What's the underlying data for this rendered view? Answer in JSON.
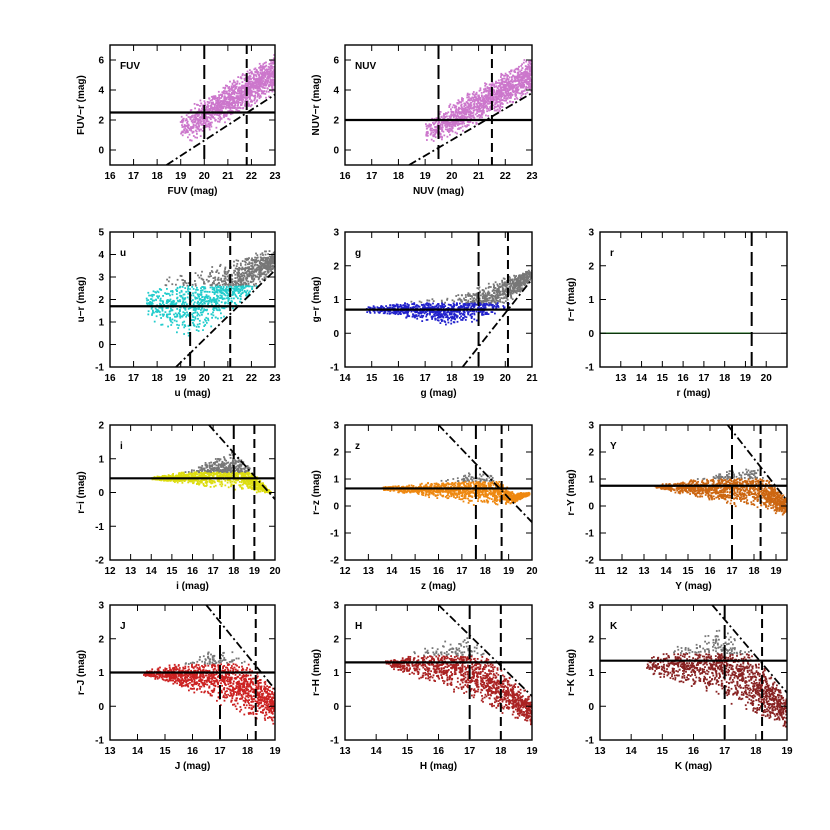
{
  "chart_data": [
    {
      "id": "fuv",
      "type": "scatter",
      "panel_label": "FUV",
      "color": "#cc77cc",
      "xlabel": "FUV (mag)",
      "ylabel": "FUV−r (mag)",
      "xlim": [
        16,
        23
      ],
      "ylim": [
        -1,
        7
      ],
      "xticks": [
        16,
        17,
        18,
        19,
        20,
        21,
        22,
        23
      ],
      "yticks": [
        0,
        2,
        4,
        6
      ],
      "hline": 2.5,
      "vline_long": 20.0,
      "vline_short": 21.8,
      "limit_line": [
        [
          18.4,
          -1
        ],
        [
          23,
          3.7
        ]
      ],
      "cloud": [
        [
          19.0,
          0.5,
          2.4
        ],
        [
          19.5,
          0.5,
          3.0
        ],
        [
          20,
          1.0,
          3.6
        ],
        [
          21,
          1.9,
          4.5
        ],
        [
          22,
          2.8,
          5.6
        ],
        [
          23,
          3.7,
          6.4
        ]
      ],
      "gray_above": 0
    },
    {
      "id": "nuv",
      "type": "scatter",
      "panel_label": "NUV",
      "color": "#cc77cc",
      "xlabel": "NUV (mag)",
      "ylabel": "NUV−r (mag)",
      "xlim": [
        16,
        23
      ],
      "ylim": [
        -1,
        7
      ],
      "xticks": [
        16,
        17,
        18,
        19,
        20,
        21,
        22,
        23
      ],
      "yticks": [
        0,
        2,
        4,
        6
      ],
      "hline": 2.0,
      "vline_long": 19.5,
      "vline_short": 21.5,
      "limit_line": [
        [
          18.4,
          -1
        ],
        [
          23,
          3.8
        ]
      ],
      "cloud": [
        [
          19.0,
          0.6,
          2.0
        ],
        [
          19.5,
          0.5,
          2.6
        ],
        [
          20,
          0.8,
          3.2
        ],
        [
          21,
          1.7,
          4.3
        ],
        [
          22,
          2.7,
          5.4
        ],
        [
          23,
          3.7,
          6.3
        ]
      ],
      "gray_above": 0
    },
    {
      "id": "u",
      "type": "scatter",
      "panel_label": "u",
      "color": "#22cccc",
      "xlabel": "u (mag)",
      "ylabel": "u−r (mag)",
      "xlim": [
        16,
        23
      ],
      "ylim": [
        -1,
        5
      ],
      "xticks": [
        16,
        17,
        18,
        19,
        20,
        21,
        22,
        23
      ],
      "yticks": [
        -1,
        0,
        1,
        2,
        3,
        4,
        5
      ],
      "hline": 1.7,
      "vline_long": 19.4,
      "vline_short": 21.1,
      "limit_line": [
        [
          18.8,
          -1
        ],
        [
          23,
          3.3
        ]
      ],
      "cloud": [
        [
          17.5,
          1.3,
          2.3
        ],
        [
          18.5,
          0.5,
          3.0
        ],
        [
          19.4,
          0.2,
          3.3
        ],
        [
          20.5,
          0.8,
          3.6
        ],
        [
          21.5,
          1.7,
          3.9
        ],
        [
          23,
          3.3,
          4.3
        ]
      ],
      "gray_above": 2.6
    },
    {
      "id": "g",
      "type": "scatter",
      "panel_label": "g",
      "color": "#2222cc",
      "xlabel": "g (mag)",
      "ylabel": "g−r (mag)",
      "xlim": [
        14,
        21
      ],
      "ylim": [
        -1,
        3
      ],
      "xticks": [
        14,
        15,
        16,
        17,
        18,
        19,
        20,
        21
      ],
      "yticks": [
        -1,
        0,
        1,
        2,
        3
      ],
      "hline": 0.7,
      "vline_long": 19.0,
      "vline_short": 20.1,
      "limit_line": [
        [
          18.4,
          -1
        ],
        [
          21,
          1.6
        ]
      ],
      "cloud": [
        [
          14.8,
          0.6,
          0.8
        ],
        [
          16,
          0.5,
          0.9
        ],
        [
          17,
          0.3,
          1.0
        ],
        [
          18,
          0.2,
          1.1
        ],
        [
          19,
          0.3,
          1.4
        ],
        [
          20,
          0.7,
          1.7
        ],
        [
          21,
          1.6,
          1.9
        ]
      ],
      "gray_above": 0.9
    },
    {
      "id": "r",
      "type": "scatter",
      "panel_label": "r",
      "color": "#33cc33",
      "xlabel": "r (mag)",
      "ylabel": "r−r (mag)",
      "xlim": [
        12,
        21
      ],
      "ylim": [
        -1,
        3
      ],
      "xticks": [
        13,
        14,
        15,
        16,
        17,
        18,
        19,
        20
      ],
      "yticks": [
        -1,
        0,
        1,
        2,
        3
      ],
      "hline": 0.0,
      "vline_long": 19.3,
      "vline_short": null,
      "limit_line": null,
      "cloud": [],
      "gray_above": 0
    },
    {
      "id": "i",
      "type": "scatter",
      "panel_label": "i",
      "color": "#dddd11",
      "xlabel": "i (mag)",
      "ylabel": "r−i (mag)",
      "xlim": [
        12,
        20
      ],
      "ylim": [
        -2,
        2
      ],
      "xticks": [
        12,
        13,
        14,
        15,
        16,
        17,
        18,
        19,
        20
      ],
      "yticks": [
        -2,
        -1,
        0,
        1,
        2
      ],
      "hline": 0.42,
      "vline_long": 18.0,
      "vline_short": 19.0,
      "limit_line": [
        [
          16.8,
          2
        ],
        [
          20,
          -0.2
        ]
      ],
      "cloud": [
        [
          14,
          0.38,
          0.45
        ],
        [
          15,
          0.3,
          0.55
        ],
        [
          16,
          0.2,
          0.7
        ],
        [
          17,
          0.12,
          1.0
        ],
        [
          18,
          0.05,
          1.3
        ],
        [
          19,
          0.0,
          0.6
        ],
        [
          19.8,
          0.0,
          0.0
        ]
      ],
      "gray_above": 0.6
    },
    {
      "id": "z",
      "type": "scatter",
      "panel_label": "z",
      "color": "#ee8811",
      "xlabel": "z (mag)",
      "ylabel": "r−z (mag)",
      "xlim": [
        12,
        20
      ],
      "ylim": [
        -2,
        3
      ],
      "xticks": [
        12,
        13,
        14,
        15,
        16,
        17,
        18,
        19,
        20
      ],
      "yticks": [
        -2,
        -1,
        0,
        1,
        2,
        3
      ],
      "hline": 0.65,
      "vline_long": 17.6,
      "vline_short": 18.7,
      "limit_line": [
        [
          16.0,
          3
        ],
        [
          20,
          -0.6
        ]
      ],
      "cloud": [
        [
          13.5,
          0.6,
          0.7
        ],
        [
          15,
          0.4,
          0.8
        ],
        [
          16.5,
          0.2,
          1.0
        ],
        [
          17.5,
          0.0,
          1.3
        ],
        [
          18.3,
          0.0,
          1.2
        ],
        [
          19.2,
          0.1,
          0.5
        ],
        [
          19.9,
          0.4,
          0.5
        ]
      ],
      "gray_above": 0.9
    },
    {
      "id": "Y",
      "type": "scatter",
      "panel_label": "Y",
      "color": "#cc6611",
      "xlabel": "Y (mag)",
      "ylabel": "r−Y (mag)",
      "xlim": [
        11,
        19.5
      ],
      "ylim": [
        -2,
        3
      ],
      "xticks": [
        11,
        12,
        13,
        14,
        15,
        16,
        17,
        18,
        19
      ],
      "yticks": [
        -2,
        -1,
        0,
        1,
        2,
        3
      ],
      "hline": 0.75,
      "vline_long": 17.0,
      "vline_short": 18.3,
      "limit_line": [
        [
          16.8,
          3
        ],
        [
          19.5,
          0.2
        ]
      ],
      "cloud": [
        [
          13.5,
          0.65,
          0.8
        ],
        [
          15,
          0.4,
          0.95
        ],
        [
          16,
          0.2,
          1.1
        ],
        [
          17,
          0.0,
          1.4
        ],
        [
          18,
          -0.1,
          1.5
        ],
        [
          19,
          -0.3,
          0.8
        ],
        [
          19.5,
          -0.4,
          0.3
        ]
      ],
      "gray_above": 1.0
    },
    {
      "id": "J",
      "type": "scatter",
      "panel_label": "J",
      "color": "#cc2222",
      "xlabel": "J (mag)",
      "ylabel": "r−J (mag)",
      "xlim": [
        13,
        19
      ],
      "ylim": [
        -1,
        3
      ],
      "xticks": [
        13,
        14,
        15,
        16,
        17,
        18,
        19
      ],
      "yticks": [
        -1,
        0,
        1,
        2,
        3
      ],
      "hline": 1.0,
      "vline_long": 17.0,
      "vline_short": 18.3,
      "limit_line": [
        [
          16.5,
          3
        ],
        [
          19,
          0.5
        ]
      ],
      "cloud": [
        [
          14.2,
          0.9,
          1.05
        ],
        [
          15,
          0.7,
          1.2
        ],
        [
          16,
          0.4,
          1.4
        ],
        [
          17,
          0.0,
          1.8
        ],
        [
          18,
          -0.3,
          1.4
        ],
        [
          19,
          -0.6,
          0.5
        ]
      ],
      "gray_above": 1.25
    },
    {
      "id": "H",
      "type": "scatter",
      "panel_label": "H",
      "color": "#aa2222",
      "xlabel": "H (mag)",
      "ylabel": "r−H (mag)",
      "xlim": [
        13,
        19
      ],
      "ylim": [
        -1,
        3
      ],
      "xticks": [
        13,
        14,
        15,
        16,
        17,
        18,
        19
      ],
      "yticks": [
        -1,
        0,
        1,
        2,
        3
      ],
      "hline": 1.3,
      "vline_long": 17.0,
      "vline_short": 18.0,
      "limit_line": [
        [
          16.0,
          3
        ],
        [
          19,
          0.3
        ]
      ],
      "cloud": [
        [
          14.3,
          1.2,
          1.35
        ],
        [
          15,
          0.9,
          1.55
        ],
        [
          16,
          0.6,
          1.9
        ],
        [
          17,
          0.2,
          2.1
        ],
        [
          18,
          -0.2,
          1.2
        ],
        [
          19,
          -0.6,
          0.3
        ]
      ],
      "gray_above": 1.5
    },
    {
      "id": "K",
      "type": "scatter",
      "panel_label": "K",
      "color": "#882222",
      "xlabel": "K (mag)",
      "ylabel": "r−K (mag)",
      "xlim": [
        13,
        19
      ],
      "ylim": [
        -1,
        3
      ],
      "xticks": [
        13,
        14,
        15,
        16,
        17,
        18,
        19
      ],
      "yticks": [
        -1,
        0,
        1,
        2,
        3
      ],
      "hline": 1.35,
      "vline_long": 17.0,
      "vline_short": 18.2,
      "limit_line": [
        [
          16.6,
          3
        ],
        [
          19,
          0.4
        ]
      ],
      "cloud": [
        [
          14.5,
          1.0,
          1.4
        ],
        [
          15,
          0.8,
          1.6
        ],
        [
          16,
          0.5,
          2.0
        ],
        [
          17,
          0.1,
          2.4
        ],
        [
          18,
          -0.3,
          1.5
        ],
        [
          19,
          -0.7,
          0.4
        ]
      ],
      "gray_above": 1.55
    }
  ]
}
